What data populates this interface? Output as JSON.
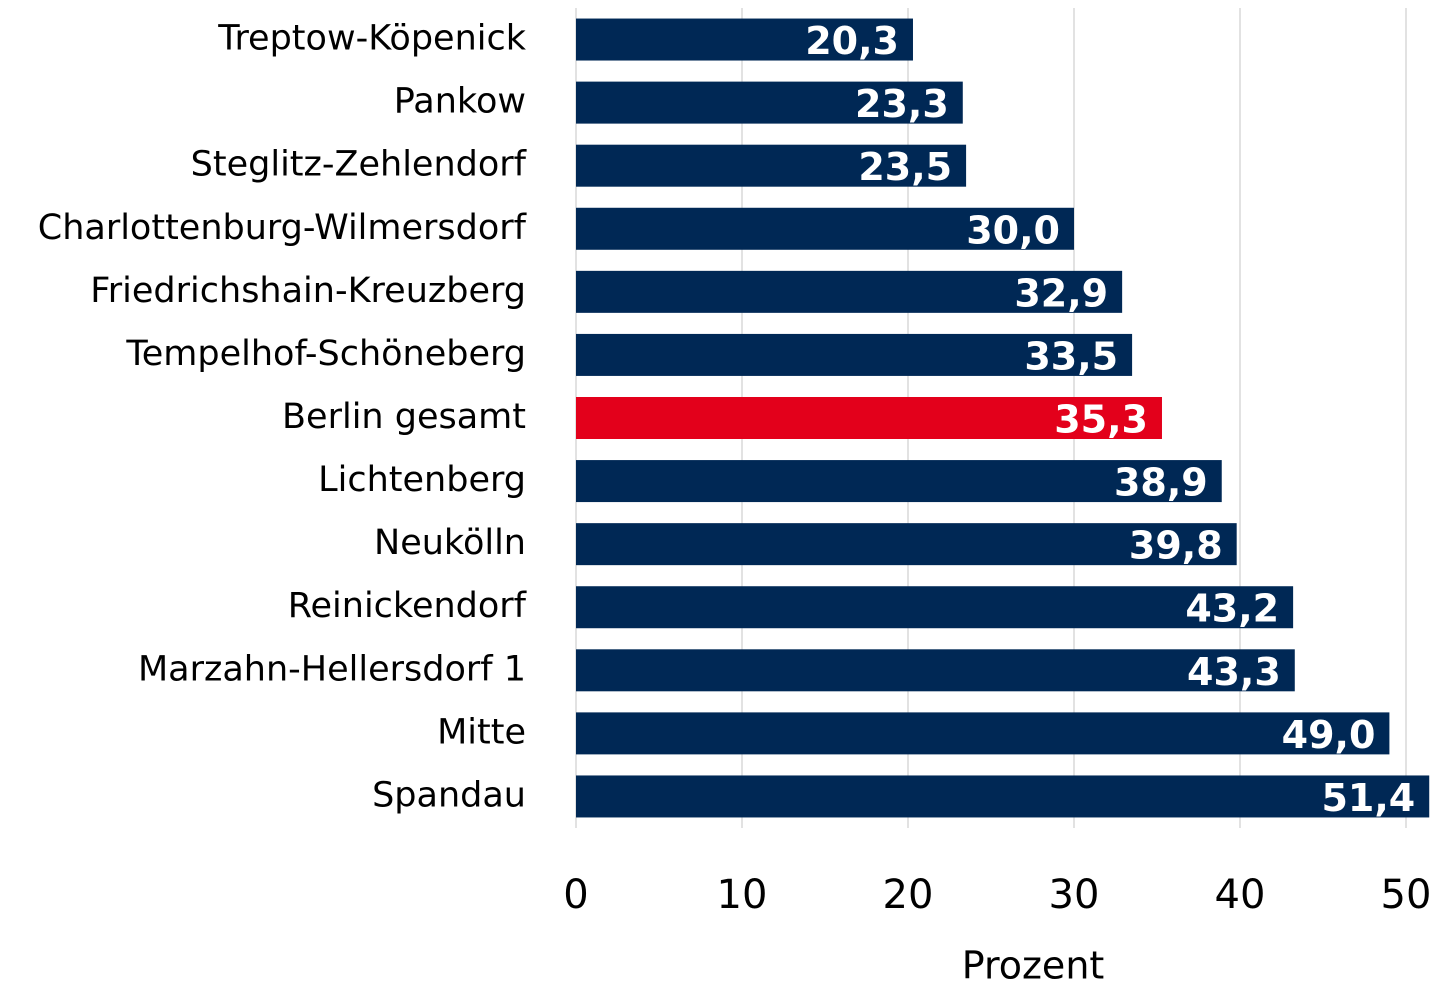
{
  "chart_data": {
    "type": "barh",
    "categories": [
      "Treptow-Köpenick",
      "Pankow",
      "Steglitz-Zehlendorf",
      "Charlottenburg-Wilmersdorf",
      "Friedrichshain-Kreuzberg",
      "Tempelhof-Schöneberg",
      "Berlin gesamt",
      "Lichtenberg",
      "Neukölln",
      "Reinickendorf",
      "Marzahn-Hellersdorf 1",
      "Mitte",
      "Spandau"
    ],
    "values": [
      20.3,
      23.3,
      23.5,
      30.0,
      32.9,
      33.5,
      35.3,
      38.9,
      39.8,
      43.2,
      43.3,
      49.0,
      51.4
    ],
    "value_labels": [
      "20,3",
      "23,3",
      "23,5",
      "30,0",
      "32,9",
      "33,5",
      "35,3",
      "38,9",
      "39,8",
      "43,2",
      "43,3",
      "49,0",
      "51,4"
    ],
    "colors": [
      "#002855",
      "#002855",
      "#002855",
      "#002855",
      "#002855",
      "#002855",
      "#e3001b",
      "#002855",
      "#002855",
      "#002855",
      "#002855",
      "#002855",
      "#002855"
    ],
    "xlabel": "Prozent",
    "xlim": [
      0,
      51.5
    ],
    "xticks": [
      0,
      10,
      20,
      30,
      40,
      50
    ],
    "grid": true
  }
}
